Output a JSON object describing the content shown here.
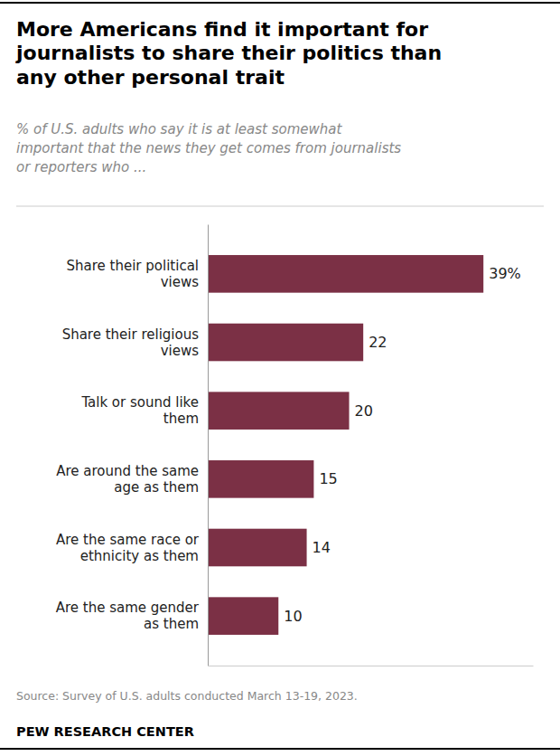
{
  "chart_data": {
    "type": "bar",
    "orientation": "horizontal",
    "title": "More Americans find it important for\njournalists to share their politics than\nany other personal trait",
    "subtitle": "% of U.S. adults who say it is at least somewhat\nimportant that the news they get comes from journalists\nor reporters who ...",
    "categories": [
      "Share their political\nviews",
      "Share their religious\nviews",
      "Talk or sound like\nthem",
      "Are around the same\nage as them",
      "Are the same race or\nethnicity as them",
      "Are the same gender\nas them"
    ],
    "values": [
      39,
      22,
      20,
      15,
      14,
      10
    ],
    "value_labels": [
      "39%",
      "22",
      "20",
      "15",
      "14",
      "10"
    ],
    "data_labels": true,
    "color": "#7b3045",
    "xlim": [
      0,
      46
    ],
    "tick_labels": "y",
    "grid": false,
    "annotations": [
      "Source: Survey of U.S. adults conducted March 13-19, 2023.",
      "PEW RESEARCH CENTER"
    ]
  }
}
